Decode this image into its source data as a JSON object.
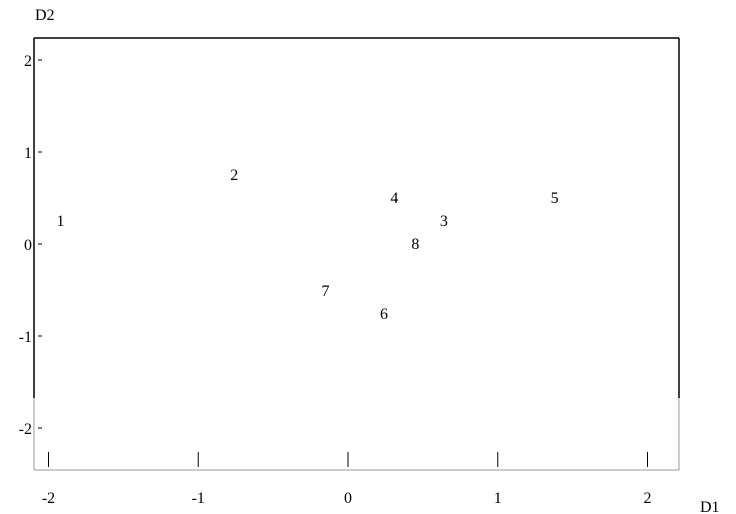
{
  "chart_data": {
    "type": "scatter",
    "xlabel": "D1",
    "ylabel": "D2",
    "xlim": [
      -2.1,
      2.2
    ],
    "ylim": [
      -2.5,
      2.2
    ],
    "xticks": [
      "-2",
      "-1",
      "0",
      "1",
      "2"
    ],
    "xtick_values": [
      -2,
      -1,
      0,
      1,
      2
    ],
    "yticks": [
      "2",
      "1",
      "0",
      "-1",
      "-2"
    ],
    "ytick_values": [
      2,
      1,
      0,
      -1,
      -2
    ],
    "grid": false,
    "marker": "text-label",
    "points": [
      {
        "label": "1",
        "x": -1.92,
        "y": 0.26
      },
      {
        "label": "2",
        "x": -0.76,
        "y": 0.76
      },
      {
        "label": "3",
        "x": 0.64,
        "y": 0.26
      },
      {
        "label": "4",
        "x": 0.31,
        "y": 0.51
      },
      {
        "label": "5",
        "x": 1.38,
        "y": 0.51
      },
      {
        "label": "6",
        "x": 0.24,
        "y": -0.75
      },
      {
        "label": "7",
        "x": -0.15,
        "y": -0.5
      },
      {
        "label": "8",
        "x": 0.45,
        "y": 0.01
      }
    ]
  }
}
